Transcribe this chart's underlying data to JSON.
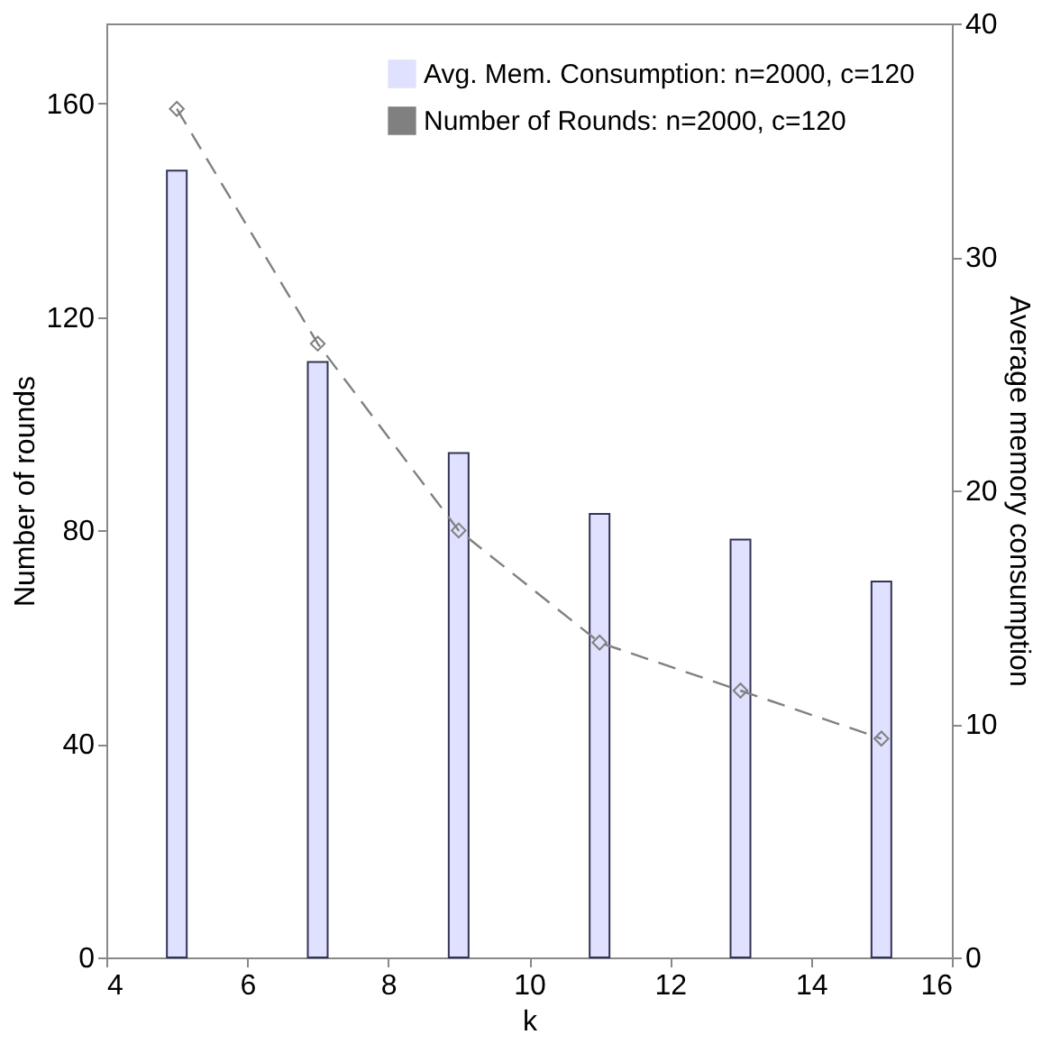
{
  "chart_data": {
    "type": "bar",
    "x": [
      5,
      7,
      9,
      11,
      13,
      15
    ],
    "xlim": [
      4,
      16
    ],
    "xticks": [
      4,
      6,
      8,
      10,
      12,
      14,
      16
    ],
    "ylim": [
      0,
      175
    ],
    "yticks": [
      0,
      40,
      80,
      120,
      160
    ],
    "y2lim": [
      0,
      40
    ],
    "y2ticks": [
      0,
      10,
      20,
      30,
      40
    ],
    "xlabel": "k",
    "ylabel": "Number of rounds",
    "y2label": "Average memory consumption",
    "legend": "top right",
    "grid": false,
    "series": [
      {
        "name": "Avg. Mem. Consumption: n=2000, c=120",
        "axis": "y2",
        "color": "#e0e0ff",
        "values": [
          33.7,
          25.5,
          21.6,
          19.0,
          17.9,
          16.1
        ]
      },
      {
        "name": "Number of Rounds: n=2000, c=120",
        "type": "line",
        "axis": "y",
        "color": "#808080",
        "marker": "diamond",
        "line_style": "dashed",
        "values": [
          159,
          115,
          80,
          59,
          50,
          41
        ]
      }
    ]
  }
}
